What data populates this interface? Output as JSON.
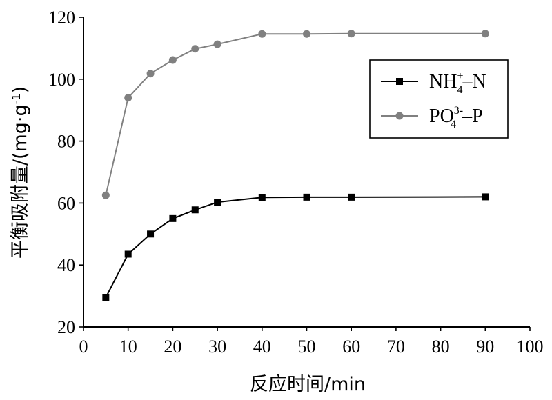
{
  "chart_data": {
    "type": "line",
    "xlabel": "反应时间/min",
    "ylabel": "平衡吸附量/(mg·g-1)",
    "ylabel_main": "平衡吸附量/(mg·g",
    "ylabel_sup": "-1",
    "ylabel_end": ")",
    "xlim": [
      0,
      100
    ],
    "ylim": [
      20,
      120
    ],
    "xticks": [
      0,
      10,
      20,
      30,
      40,
      50,
      60,
      70,
      80,
      90,
      100
    ],
    "yticks": [
      20,
      40,
      60,
      80,
      100,
      120
    ],
    "grid": false,
    "legend_position": "top-right",
    "series": [
      {
        "name": "NH4+-N",
        "legend_parts": {
          "base": "NH",
          "sub": "4",
          "sup": "+",
          "tail": "–N"
        },
        "marker": "square",
        "color": "#000000",
        "x": [
          5,
          10,
          15,
          20,
          25,
          30,
          40,
          50,
          60,
          90
        ],
        "y": [
          29.5,
          43.5,
          50.0,
          55.0,
          57.8,
          60.3,
          61.8,
          61.9,
          61.9,
          62.0
        ]
      },
      {
        "name": "PO43--P",
        "legend_parts": {
          "base": "PO",
          "sub": "4",
          "sup": "3-",
          "tail": "–P"
        },
        "marker": "circle",
        "color": "#808080",
        "x": [
          5,
          10,
          15,
          20,
          25,
          30,
          40,
          50,
          60,
          90
        ],
        "y": [
          62.5,
          94.0,
          101.8,
          106.2,
          109.8,
          111.3,
          114.6,
          114.6,
          114.7,
          114.7
        ]
      }
    ]
  }
}
